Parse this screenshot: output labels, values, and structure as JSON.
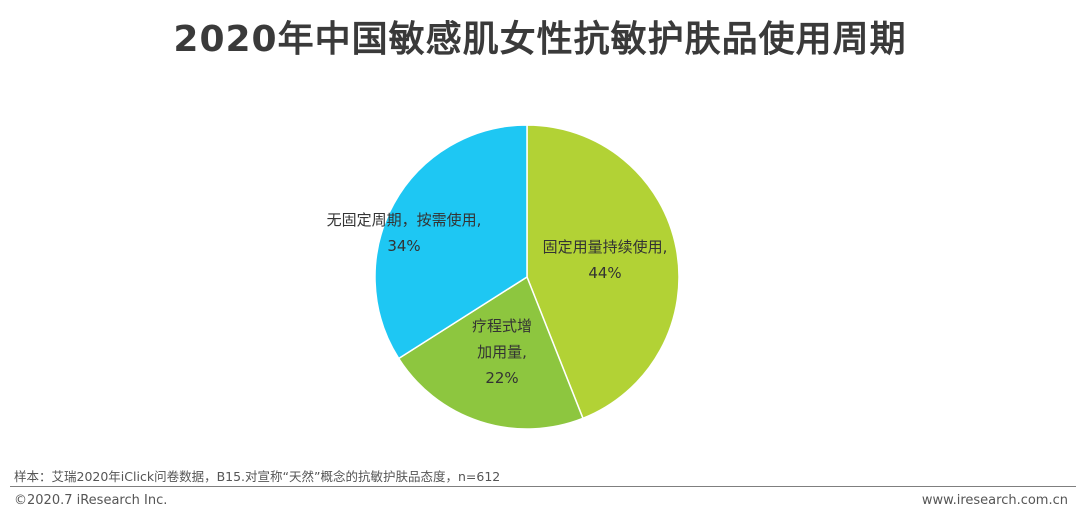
{
  "title": "2020年中国敏感肌女性抗敏护肤品使用周期",
  "chart_data": {
    "type": "pie",
    "slices": [
      {
        "label_lines": [
          "固定用量持续使用,"
        ],
        "value": 44,
        "value_label": "44%",
        "color": "#b2d235"
      },
      {
        "label_lines": [
          "疗程式增",
          "加用量,"
        ],
        "value": 22,
        "value_label": "22%",
        "color": "#8dc63f"
      },
      {
        "label_lines": [
          "无固定周期，按需使用,"
        ],
        "value": 34,
        "value_label": "34%",
        "color": "#1ec7f3"
      }
    ],
    "start_angle_deg": 0,
    "direction": "clockwise"
  },
  "footer": {
    "source": "样本：艾瑞2020年iClick问卷数据，B15.对宣称“天然”概念的抗敏护肤品态度，n=612",
    "copyright": "©2020.7 iResearch Inc.",
    "website": "www.iresearch.com.cn"
  }
}
